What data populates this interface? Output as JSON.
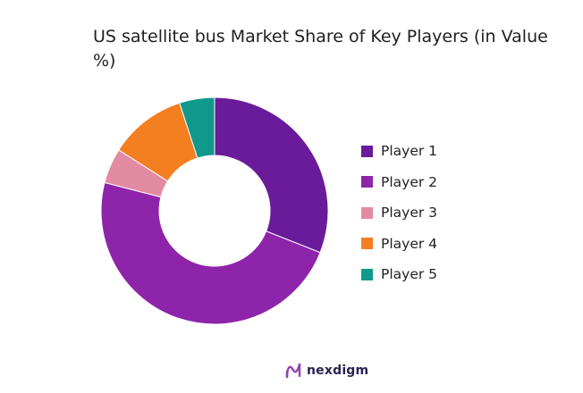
{
  "chart_data": {
    "type": "pie",
    "title": "US satellite bus Market Share of Key Players (in Value %)",
    "categories": [
      "Player 1",
      "Player 2",
      "Player 3",
      "Player 4",
      "Player 5"
    ],
    "values": [
      31,
      48,
      5,
      11,
      5
    ],
    "colors": [
      "#6a1b9a",
      "#8e24aa",
      "#e38aa3",
      "#f37f21",
      "#10998a"
    ],
    "legend_position": "right",
    "donut": true
  },
  "footer": {
    "logo_text": "nexdigm",
    "logo_icon": "nexdigm-logo-icon"
  }
}
